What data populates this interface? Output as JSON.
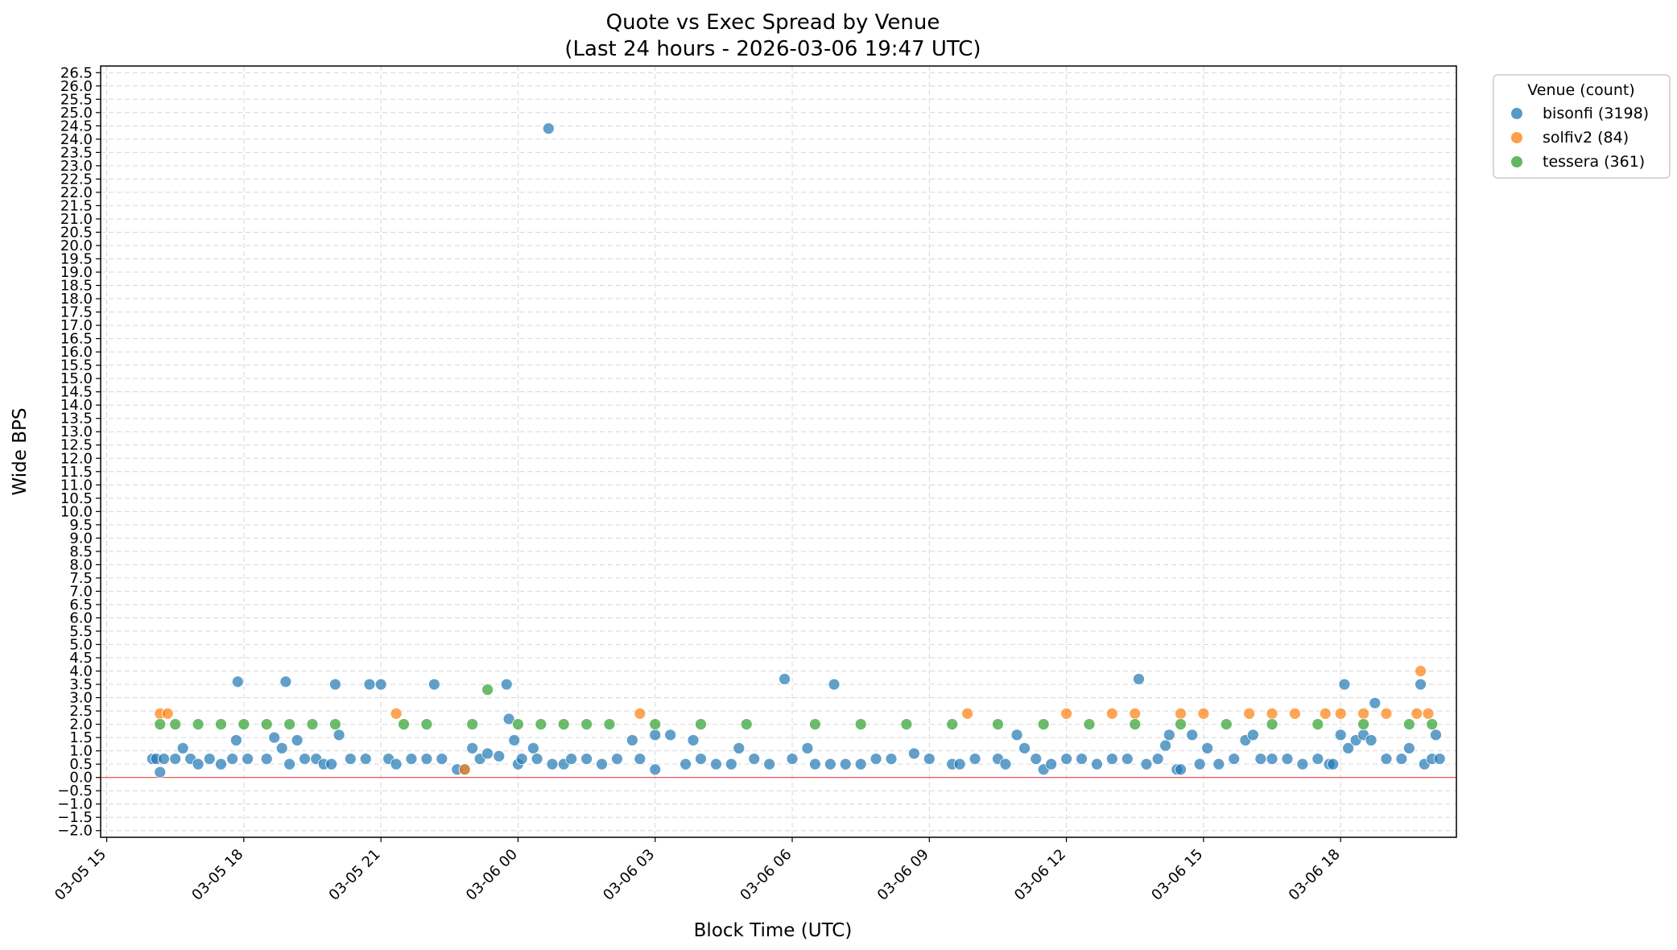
{
  "chart_data": {
    "type": "scatter",
    "title": "Quote vs Exec Spread by Venue",
    "subtitle": "(Last 24 hours - 2026-03-06 19:47 UTC)",
    "xlabel": "Block Time (UTC)",
    "ylabel": "Wide BPS",
    "xlim": [
      "2026-03-05 14:52",
      "2026-03-06 20:32"
    ],
    "ylim": [
      -2.25,
      26.75
    ],
    "x_ticks": [
      "03-05 15",
      "03-05 18",
      "03-05 21",
      "03-06 00",
      "03-06 03",
      "03-06 06",
      "03-06 09",
      "03-06 12",
      "03-06 15",
      "03-06 18"
    ],
    "y_ticks": [
      "-2.0",
      "-1.5",
      "-1.0",
      "-0.5",
      "0.0",
      "0.5",
      "1.0",
      "1.5",
      "2.0",
      "2.5",
      "3.0",
      "3.5",
      "4.0",
      "4.5",
      "5.0",
      "5.5",
      "6.0",
      "6.5",
      "7.0",
      "7.5",
      "8.0",
      "8.5",
      "9.0",
      "9.5",
      "10.0",
      "10.5",
      "11.0",
      "11.5",
      "12.0",
      "12.5",
      "13.0",
      "13.5",
      "14.0",
      "14.5",
      "15.0",
      "15.5",
      "16.0",
      "16.5",
      "17.0",
      "17.5",
      "18.0",
      "18.5",
      "19.0",
      "19.5",
      "20.0",
      "20.5",
      "21.0",
      "21.5",
      "22.0",
      "22.5",
      "23.0",
      "23.5",
      "24.0",
      "24.5",
      "25.0",
      "25.5",
      "26.0",
      "26.5"
    ],
    "grid": true,
    "reference_line": {
      "y": 0.0,
      "color": "#e8474a"
    },
    "legend": {
      "title": "Venue (count)",
      "placement": "outside-top-right"
    },
    "series": [
      {
        "name": "bisonfi (3198)",
        "color": "#1f77b4",
        "points": [
          [
            "03-05 16:00",
            0.7
          ],
          [
            "03-05 16:05",
            0.7
          ],
          [
            "03-05 16:10",
            0.2
          ],
          [
            "03-05 16:15",
            0.7
          ],
          [
            "03-05 16:30",
            0.7
          ],
          [
            "03-05 16:40",
            1.1
          ],
          [
            "03-05 16:50",
            0.7
          ],
          [
            "03-05 17:00",
            0.5
          ],
          [
            "03-05 17:15",
            0.7
          ],
          [
            "03-05 17:30",
            0.5
          ],
          [
            "03-05 17:45",
            0.7
          ],
          [
            "03-05 17:50",
            1.4
          ],
          [
            "03-05 17:52",
            3.6
          ],
          [
            "03-05 18:05",
            0.7
          ],
          [
            "03-05 18:30",
            0.7
          ],
          [
            "03-05 18:40",
            1.5
          ],
          [
            "03-05 18:50",
            1.1
          ],
          [
            "03-05 18:55",
            3.6
          ],
          [
            "03-05 19:00",
            0.5
          ],
          [
            "03-05 19:10",
            1.4
          ],
          [
            "03-05 19:20",
            0.7
          ],
          [
            "03-05 19:35",
            0.7
          ],
          [
            "03-05 19:45",
            0.5
          ],
          [
            "03-05 19:55",
            0.5
          ],
          [
            "03-05 20:00",
            3.5
          ],
          [
            "03-05 20:05",
            1.6
          ],
          [
            "03-05 20:20",
            0.7
          ],
          [
            "03-05 20:40",
            0.7
          ],
          [
            "03-05 20:45",
            3.5
          ],
          [
            "03-05 21:00",
            3.5
          ],
          [
            "03-05 21:10",
            0.7
          ],
          [
            "03-05 21:20",
            0.5
          ],
          [
            "03-05 21:40",
            0.7
          ],
          [
            "03-05 22:00",
            0.7
          ],
          [
            "03-05 22:10",
            3.5
          ],
          [
            "03-05 22:20",
            0.7
          ],
          [
            "03-05 22:40",
            0.3
          ],
          [
            "03-05 22:50",
            0.3
          ],
          [
            "03-05 23:00",
            1.1
          ],
          [
            "03-05 23:10",
            0.7
          ],
          [
            "03-05 23:20",
            0.9
          ],
          [
            "03-05 23:35",
            0.8
          ],
          [
            "03-05 23:45",
            3.5
          ],
          [
            "03-05 23:48",
            2.2
          ],
          [
            "03-05 23:55",
            1.4
          ],
          [
            "03-06 00:00",
            0.5
          ],
          [
            "03-06 00:05",
            0.7
          ],
          [
            "03-06 00:20",
            1.1
          ],
          [
            "03-06 00:25",
            0.7
          ],
          [
            "03-06 00:40",
            24.4
          ],
          [
            "03-06 00:45",
            0.5
          ],
          [
            "03-06 01:00",
            0.5
          ],
          [
            "03-06 01:10",
            0.7
          ],
          [
            "03-06 01:30",
            0.7
          ],
          [
            "03-06 01:50",
            0.5
          ],
          [
            "03-06 02:10",
            0.7
          ],
          [
            "03-06 02:30",
            1.4
          ],
          [
            "03-06 02:40",
            0.7
          ],
          [
            "03-06 03:00",
            1.6
          ],
          [
            "03-06 03:00",
            0.3
          ],
          [
            "03-06 03:20",
            1.6
          ],
          [
            "03-06 03:40",
            0.5
          ],
          [
            "03-06 03:50",
            1.4
          ],
          [
            "03-06 04:00",
            0.7
          ],
          [
            "03-06 04:20",
            0.5
          ],
          [
            "03-06 04:40",
            0.5
          ],
          [
            "03-06 04:50",
            1.1
          ],
          [
            "03-06 05:10",
            0.7
          ],
          [
            "03-06 05:30",
            0.5
          ],
          [
            "03-06 05:50",
            3.7
          ],
          [
            "03-06 06:00",
            0.7
          ],
          [
            "03-06 06:20",
            1.1
          ],
          [
            "03-06 06:30",
            0.5
          ],
          [
            "03-06 06:50",
            0.5
          ],
          [
            "03-06 06:55",
            3.5
          ],
          [
            "03-06 07:10",
            0.5
          ],
          [
            "03-06 07:30",
            0.5
          ],
          [
            "03-06 07:50",
            0.7
          ],
          [
            "03-06 08:10",
            0.7
          ],
          [
            "03-06 08:40",
            0.9
          ],
          [
            "03-06 09:00",
            0.7
          ],
          [
            "03-06 09:30",
            0.5
          ],
          [
            "03-06 09:40",
            0.5
          ],
          [
            "03-06 10:00",
            0.7
          ],
          [
            "03-06 10:30",
            0.7
          ],
          [
            "03-06 10:40",
            0.5
          ],
          [
            "03-06 10:55",
            1.6
          ],
          [
            "03-06 11:05",
            1.1
          ],
          [
            "03-06 11:20",
            0.7
          ],
          [
            "03-06 11:30",
            0.3
          ],
          [
            "03-06 11:40",
            0.5
          ],
          [
            "03-06 12:00",
            0.7
          ],
          [
            "03-06 12:20",
            0.7
          ],
          [
            "03-06 12:40",
            0.5
          ],
          [
            "03-06 13:00",
            0.7
          ],
          [
            "03-06 13:20",
            0.7
          ],
          [
            "03-06 13:35",
            3.7
          ],
          [
            "03-06 13:45",
            0.5
          ],
          [
            "03-06 14:00",
            0.7
          ],
          [
            "03-06 14:10",
            1.2
          ],
          [
            "03-06 14:15",
            1.6
          ],
          [
            "03-06 14:25",
            0.3
          ],
          [
            "03-06 14:30",
            0.3
          ],
          [
            "03-06 14:45",
            1.6
          ],
          [
            "03-06 14:55",
            0.5
          ],
          [
            "03-06 15:05",
            1.1
          ],
          [
            "03-06 15:20",
            0.5
          ],
          [
            "03-06 15:40",
            0.7
          ],
          [
            "03-06 15:55",
            1.4
          ],
          [
            "03-06 16:05",
            1.6
          ],
          [
            "03-06 16:15",
            0.7
          ],
          [
            "03-06 16:30",
            0.7
          ],
          [
            "03-06 16:50",
            0.7
          ],
          [
            "03-06 17:10",
            0.5
          ],
          [
            "03-06 17:30",
            0.7
          ],
          [
            "03-06 17:45",
            0.5
          ],
          [
            "03-06 17:50",
            0.5
          ],
          [
            "03-06 18:00",
            1.6
          ],
          [
            "03-06 18:05",
            3.5
          ],
          [
            "03-06 18:10",
            1.1
          ],
          [
            "03-06 18:20",
            1.4
          ],
          [
            "03-06 18:30",
            1.6
          ],
          [
            "03-06 18:40",
            1.4
          ],
          [
            "03-06 18:45",
            2.8
          ],
          [
            "03-06 19:00",
            0.7
          ],
          [
            "03-06 19:20",
            0.7
          ],
          [
            "03-06 19:30",
            1.1
          ],
          [
            "03-06 19:45",
            3.5
          ],
          [
            "03-06 19:50",
            0.5
          ],
          [
            "03-06 20:00",
            0.7
          ],
          [
            "03-06 20:05",
            1.6
          ],
          [
            "03-06 20:10",
            0.7
          ]
        ]
      },
      {
        "name": "solfiv2 (84)",
        "color": "#ff7f0e",
        "points": [
          [
            "03-05 16:10",
            2.4
          ],
          [
            "03-05 16:20",
            2.4
          ],
          [
            "03-05 21:20",
            2.4
          ],
          [
            "03-05 22:50",
            0.3
          ],
          [
            "03-06 02:40",
            2.4
          ],
          [
            "03-06 09:50",
            2.4
          ],
          [
            "03-06 12:00",
            2.4
          ],
          [
            "03-06 13:00",
            2.4
          ],
          [
            "03-06 13:30",
            2.4
          ],
          [
            "03-06 14:30",
            2.4
          ],
          [
            "03-06 15:00",
            2.4
          ],
          [
            "03-06 16:00",
            2.4
          ],
          [
            "03-06 16:30",
            2.4
          ],
          [
            "03-06 17:00",
            2.4
          ],
          [
            "03-06 17:40",
            2.4
          ],
          [
            "03-06 18:00",
            2.4
          ],
          [
            "03-06 18:30",
            2.4
          ],
          [
            "03-06 19:00",
            2.4
          ],
          [
            "03-06 19:40",
            2.4
          ],
          [
            "03-06 19:45",
            4.0
          ],
          [
            "03-06 19:55",
            2.4
          ]
        ]
      },
      {
        "name": "tessera (361)",
        "color": "#2ca02c",
        "points": [
          [
            "03-05 16:10",
            2.0
          ],
          [
            "03-05 16:30",
            2.0
          ],
          [
            "03-05 17:00",
            2.0
          ],
          [
            "03-05 17:30",
            2.0
          ],
          [
            "03-05 18:00",
            2.0
          ],
          [
            "03-05 18:30",
            2.0
          ],
          [
            "03-05 19:00",
            2.0
          ],
          [
            "03-05 19:30",
            2.0
          ],
          [
            "03-05 20:00",
            2.0
          ],
          [
            "03-05 21:30",
            2.0
          ],
          [
            "03-05 22:00",
            2.0
          ],
          [
            "03-05 23:00",
            2.0
          ],
          [
            "03-05 23:20",
            3.3
          ],
          [
            "03-06 00:00",
            2.0
          ],
          [
            "03-06 00:30",
            2.0
          ],
          [
            "03-06 01:00",
            2.0
          ],
          [
            "03-06 01:30",
            2.0
          ],
          [
            "03-06 02:00",
            2.0
          ],
          [
            "03-06 03:00",
            2.0
          ],
          [
            "03-06 04:00",
            2.0
          ],
          [
            "03-06 05:00",
            2.0
          ],
          [
            "03-06 06:30",
            2.0
          ],
          [
            "03-06 07:30",
            2.0
          ],
          [
            "03-06 08:30",
            2.0
          ],
          [
            "03-06 09:30",
            2.0
          ],
          [
            "03-06 10:30",
            2.0
          ],
          [
            "03-06 11:30",
            2.0
          ],
          [
            "03-06 12:30",
            2.0
          ],
          [
            "03-06 13:30",
            2.0
          ],
          [
            "03-06 14:30",
            2.0
          ],
          [
            "03-06 15:30",
            2.0
          ],
          [
            "03-06 16:30",
            2.0
          ],
          [
            "03-06 17:30",
            2.0
          ],
          [
            "03-06 18:30",
            2.0
          ],
          [
            "03-06 19:30",
            2.0
          ],
          [
            "03-06 20:00",
            2.0
          ]
        ]
      }
    ]
  }
}
